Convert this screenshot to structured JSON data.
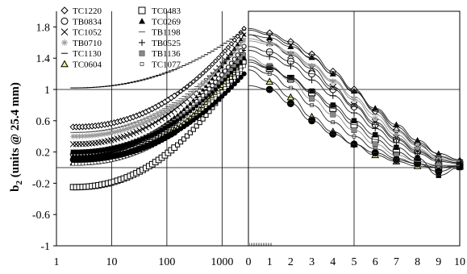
{
  "chart_data": {
    "type": "scatter",
    "ylabel_main": "b",
    "ylabel_sub": "2",
    "ylabel_rest": " (units @ 25.4 mm)",
    "ylim": [
      -1,
      2
    ],
    "yticks": [
      "1.8",
      "1.4",
      "1",
      "0.6",
      "0.2",
      "-0.2",
      "-0.6",
      "-1"
    ],
    "yvals": [
      1.8,
      1.4,
      1,
      0.6,
      0.2,
      -0.2,
      -0.6,
      -1
    ],
    "left_panel": {
      "xscale": "log",
      "xlim": [
        1,
        3000
      ],
      "xticks": [
        "1",
        "10",
        "100",
        "1000"
      ],
      "xvals": [
        1,
        10,
        100,
        1000
      ]
    },
    "right_panel": {
      "xscale": "linear",
      "xlim": [
        0,
        10
      ],
      "xticks": [
        "0",
        "1",
        "2",
        "3",
        "4",
        "5",
        "6",
        "7",
        "8",
        "9",
        "10"
      ],
      "xvals": [
        0,
        1,
        2,
        3,
        4,
        5,
        6,
        7,
        8,
        9,
        10
      ]
    },
    "series": [
      {
        "name": "TC1220",
        "marker": "diamond",
        "left": {
          "start": 0.52,
          "end": 1.78
        },
        "right": [
          [
            0,
            1.78
          ],
          [
            1,
            1.72
          ],
          [
            2,
            1.61
          ],
          [
            3,
            1.45
          ],
          [
            4,
            1.23
          ],
          [
            5,
            1.0
          ],
          [
            6,
            0.72
          ],
          [
            7,
            0.48
          ],
          [
            8,
            0.3
          ],
          [
            9,
            0.14
          ],
          [
            10,
            0.08
          ]
        ]
      },
      {
        "name": "TB0834",
        "marker": "circle-open",
        "left": {
          "start": 0.17,
          "end": 1.55
        },
        "right": [
          [
            0,
            1.55
          ],
          [
            1,
            1.48
          ],
          [
            2,
            1.36
          ],
          [
            3,
            1.2
          ],
          [
            4,
            1.0
          ],
          [
            5,
            0.78
          ],
          [
            6,
            0.55
          ],
          [
            7,
            0.36
          ],
          [
            8,
            0.2
          ],
          [
            9,
            0.1
          ],
          [
            10,
            0.06
          ]
        ]
      },
      {
        "name": "TC1052",
        "marker": "x",
        "left": {
          "start": 0.3,
          "end": 1.7
        },
        "right": [
          [
            0,
            1.7
          ],
          [
            1,
            1.6
          ],
          [
            2,
            1.44
          ],
          [
            3,
            1.27
          ],
          [
            4,
            1.03
          ],
          [
            5,
            0.8
          ],
          [
            6,
            0.58
          ],
          [
            7,
            0.38
          ],
          [
            8,
            0.22
          ],
          [
            9,
            0.1
          ],
          [
            10,
            0.06
          ]
        ]
      },
      {
        "name": "TB0710",
        "marker": "asterisk",
        "left": {
          "start": 0.4,
          "end": 1.62
        },
        "right": [
          [
            0,
            1.62
          ],
          [
            1,
            1.58
          ],
          [
            2,
            1.46
          ],
          [
            3,
            1.3
          ],
          [
            4,
            1.1
          ],
          [
            5,
            0.87
          ],
          [
            6,
            0.63
          ],
          [
            7,
            0.42
          ],
          [
            8,
            0.24
          ],
          [
            9,
            0.12
          ],
          [
            10,
            0.08
          ]
        ]
      },
      {
        "name": "TC1130",
        "marker": "dash",
        "left": {
          "start": 1.02,
          "end": 1.76
        },
        "right": [
          [
            0,
            1.76
          ],
          [
            1,
            1.7
          ],
          [
            2,
            1.58
          ],
          [
            3,
            1.4
          ],
          [
            4,
            1.2
          ],
          [
            5,
            0.97
          ],
          [
            6,
            0.74
          ],
          [
            7,
            0.52
          ],
          [
            8,
            0.32
          ],
          [
            9,
            0.18
          ],
          [
            10,
            0.1
          ]
        ]
      },
      {
        "name": "TC0604",
        "marker": "triangle-yellow",
        "left": {
          "start": 0.06,
          "end": 1.4
        },
        "right": [
          [
            0,
            1.25
          ],
          [
            1,
            1.1
          ],
          [
            2,
            0.9
          ],
          [
            3,
            0.65
          ],
          [
            4,
            0.46
          ],
          [
            5,
            0.3
          ],
          [
            6,
            0.16
          ],
          [
            7,
            0.08
          ],
          [
            8,
            0.02
          ],
          [
            9,
            0.0
          ],
          [
            10,
            0.02
          ]
        ]
      },
      {
        "name": "TC0483",
        "marker": "square-open",
        "left": {
          "start": -0.25,
          "end": 1.35
        },
        "right": [
          [
            0,
            1.35
          ],
          [
            1,
            1.27
          ],
          [
            2,
            1.14
          ],
          [
            3,
            0.96
          ],
          [
            4,
            0.76
          ],
          [
            5,
            0.55
          ],
          [
            6,
            0.36
          ],
          [
            7,
            0.2
          ],
          [
            8,
            0.08
          ],
          [
            9,
            0.02
          ],
          [
            10,
            0.02
          ]
        ]
      },
      {
        "name": "TC0269",
        "marker": "triangle-filled",
        "left": {
          "start": 0.15,
          "end": 1.7
        },
        "right": [
          [
            0,
            1.7
          ],
          [
            1,
            1.66
          ],
          [
            2,
            1.55
          ],
          [
            3,
            1.41
          ],
          [
            4,
            1.2
          ],
          [
            5,
            0.98
          ],
          [
            6,
            0.76
          ],
          [
            7,
            0.55
          ],
          [
            8,
            0.35
          ],
          [
            9,
            0.18
          ],
          [
            10,
            0.1
          ]
        ]
      },
      {
        "name": "TB1198",
        "marker": "line",
        "left": {
          "start": 0.45,
          "end": 1.65
        },
        "right": [
          [
            0,
            1.65
          ],
          [
            1,
            1.6
          ],
          [
            2,
            1.48
          ],
          [
            3,
            1.32
          ],
          [
            4,
            1.12
          ],
          [
            5,
            0.9
          ],
          [
            6,
            0.68
          ],
          [
            7,
            0.46
          ],
          [
            8,
            0.28
          ],
          [
            9,
            0.15
          ],
          [
            10,
            0.09
          ]
        ]
      },
      {
        "name": "TB0525",
        "marker": "plus",
        "left": {
          "start": 0.1,
          "end": 1.5
        },
        "right": [
          [
            0,
            1.5
          ],
          [
            1,
            1.42
          ],
          [
            2,
            1.3
          ],
          [
            3,
            1.12
          ],
          [
            4,
            0.92
          ],
          [
            5,
            0.7
          ],
          [
            6,
            0.5
          ],
          [
            7,
            0.32
          ],
          [
            8,
            0.18
          ],
          [
            9,
            0.08
          ],
          [
            10,
            0.05
          ]
        ]
      },
      {
        "name": "TB1136",
        "marker": "asterisk-box",
        "left": {
          "start": 0.2,
          "end": 1.45
        },
        "right": [
          [
            0,
            1.42
          ],
          [
            1,
            1.3
          ],
          [
            2,
            1.12
          ],
          [
            3,
            0.88
          ],
          [
            4,
            0.68
          ],
          [
            5,
            0.48
          ],
          [
            6,
            0.3
          ],
          [
            7,
            0.16
          ],
          [
            8,
            0.08
          ],
          [
            9,
            0.03
          ],
          [
            10,
            0.03
          ]
        ]
      },
      {
        "name": "TC1077",
        "marker": "dot-small",
        "left": {
          "start": 0.05,
          "end": 1.3
        },
        "right": [
          [
            0,
            1.3
          ],
          [
            1,
            1.2
          ],
          [
            2,
            1.02
          ],
          [
            3,
            0.8
          ],
          [
            4,
            0.58
          ],
          [
            5,
            0.4
          ],
          [
            6,
            0.24
          ],
          [
            7,
            0.12
          ],
          [
            8,
            0.05
          ],
          [
            9,
            0.0
          ],
          [
            10,
            0.02
          ]
        ]
      },
      {
        "name": "",
        "marker": "circle-filled",
        "left": {
          "start": 0.1,
          "end": 1.2
        },
        "right": [
          [
            0,
            1.05
          ],
          [
            1,
            1.0
          ],
          [
            2,
            0.82
          ],
          [
            3,
            0.6
          ],
          [
            4,
            0.43
          ],
          [
            5,
            0.3
          ],
          [
            6,
            0.19
          ],
          [
            7,
            0.1
          ],
          [
            8,
            0.05
          ],
          [
            9,
            -0.05
          ],
          [
            10,
            0.02
          ]
        ]
      },
      {
        "name": "",
        "marker": "square-filled",
        "left": {
          "start": 0.2,
          "end": 1.4
        },
        "right": [
          [
            0,
            1.38
          ],
          [
            1,
            1.28
          ],
          [
            2,
            1.15
          ],
          [
            3,
            0.98
          ],
          [
            4,
            0.8
          ],
          [
            5,
            0.6
          ],
          [
            6,
            0.42
          ],
          [
            7,
            0.26
          ],
          [
            8,
            0.12
          ],
          [
            9,
            -0.1
          ],
          [
            10,
            0.0
          ]
        ]
      }
    ],
    "legend_col1": [
      "TC1220",
      "TB0834",
      "TC1052",
      "TB0710",
      "TC1130",
      "TC0604"
    ],
    "legend_col2": [
      "TC0483",
      "TC0269",
      "TB1198",
      "TB0525",
      "TB1136",
      "TC1077"
    ]
  }
}
